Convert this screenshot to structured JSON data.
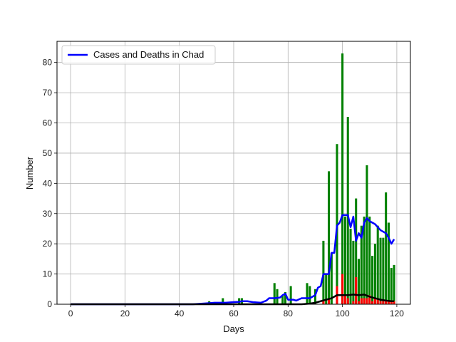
{
  "chart_data": {
    "type": "bar",
    "title": "",
    "xlabel": "Days",
    "ylabel": "Number",
    "xlim": [
      -5,
      125
    ],
    "ylim": [
      0,
      87
    ],
    "xticks": [
      0,
      20,
      40,
      60,
      80,
      100,
      120
    ],
    "yticks": [
      0,
      10,
      20,
      30,
      40,
      50,
      60,
      70,
      80
    ],
    "grid": true,
    "legend": {
      "position": "top-left",
      "entries": [
        "Cases and Deaths in Chad"
      ]
    },
    "series": [
      {
        "name": "Cases and Deaths in Chad",
        "kind": "line",
        "color": "#0000ff",
        "x": [
          0,
          45,
          50,
          53,
          55,
          57,
          60,
          62,
          63,
          65,
          67,
          70,
          72,
          73,
          75,
          77,
          78,
          79,
          80,
          82,
          83,
          85,
          87,
          88,
          89,
          90,
          91,
          92,
          93,
          94,
          95,
          96,
          97,
          98,
          99,
          100,
          101,
          102,
          103,
          104,
          105,
          106,
          107,
          108,
          109,
          110,
          111,
          112,
          113,
          114,
          115,
          116,
          117,
          118,
          119
        ],
        "values": [
          0,
          0,
          0.3,
          0.5,
          0.5,
          0.5,
          0.7,
          0.8,
          1,
          1,
          0.7,
          0.5,
          1.2,
          2,
          2,
          2.2,
          3,
          3.5,
          1.5,
          1.5,
          1.2,
          2,
          2,
          2,
          2.5,
          3,
          5.5,
          6,
          10,
          10,
          10,
          17,
          17,
          26,
          27,
          29.5,
          29.5,
          29.5,
          25.5,
          29,
          21,
          23.5,
          22,
          27,
          28.5,
          27.5,
          27,
          26.5,
          25.5,
          24.5,
          24,
          23.5,
          22,
          20,
          21.5
        ]
      },
      {
        "name": "",
        "kind": "line",
        "color": "#000000",
        "x": [
          0,
          50,
          60,
          70,
          80,
          85,
          88,
          90,
          92,
          94,
          96,
          98,
          100,
          102,
          104,
          106,
          108,
          110,
          112,
          114,
          116,
          118,
          119
        ],
        "values": [
          0,
          0,
          0,
          0,
          0,
          0,
          0.2,
          0.5,
          1,
          1.5,
          2,
          3,
          3,
          3,
          3.2,
          3,
          3.2,
          2.5,
          2,
          1.5,
          1.2,
          1,
          1
        ]
      },
      {
        "name": "",
        "kind": "bar",
        "color": "#008000",
        "x": [
          51,
          56,
          62,
          63,
          75,
          76,
          78,
          79,
          81,
          87,
          88,
          90,
          93,
          94,
          95,
          96,
          98,
          100,
          101,
          102,
          103,
          104,
          105,
          106,
          107,
          108,
          109,
          110,
          111,
          112,
          113,
          114,
          115,
          116,
          117,
          118,
          119
        ],
        "values": [
          1,
          2,
          2,
          2,
          7,
          5,
          3,
          4,
          6,
          7,
          6,
          5,
          21,
          10,
          44,
          17,
          53,
          83,
          29,
          62,
          25,
          21,
          35,
          15,
          26,
          29,
          46,
          29,
          16,
          20,
          26,
          22,
          22,
          37,
          27,
          12,
          13
        ]
      },
      {
        "name": "",
        "kind": "bar",
        "color": "#ff0000",
        "x": [
          93,
          95,
          98,
          100,
          101,
          102,
          104,
          105,
          106,
          107,
          108,
          109,
          110,
          111,
          112,
          113,
          114,
          115,
          116,
          117,
          118,
          119
        ],
        "values": [
          1,
          2,
          6,
          10,
          3,
          2,
          1,
          9,
          1,
          2,
          2,
          2,
          3,
          1,
          2,
          2,
          1,
          1,
          1,
          1,
          1,
          1
        ]
      }
    ]
  }
}
